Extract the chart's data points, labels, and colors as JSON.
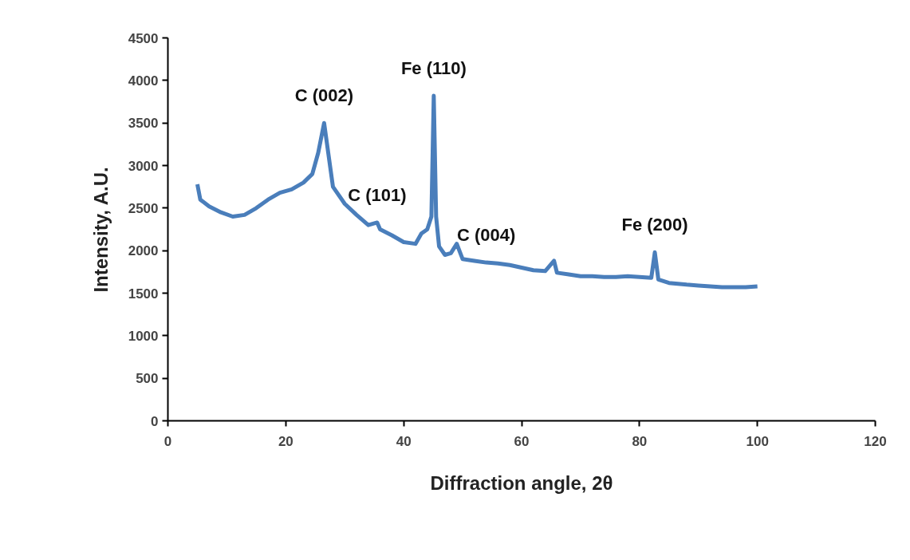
{
  "chart_data": {
    "type": "line",
    "xlabel": "Diffraction angle, 2θ",
    "ylabel": "Intensity, A.U.",
    "xlim": [
      0,
      120
    ],
    "xticks": [
      0,
      20,
      40,
      60,
      80,
      100,
      120
    ],
    "ylim": [
      0,
      4500
    ],
    "yticks": [
      0,
      500,
      1000,
      1500,
      2000,
      2500,
      3000,
      3500,
      4000,
      4500
    ],
    "grid": false,
    "marker": "none",
    "line_style": "solid",
    "series": [
      {
        "color": "#4a7ebb",
        "x": [
          5,
          5.5,
          7,
          9,
          11,
          13,
          15,
          17,
          19,
          21,
          23,
          24.5,
          25.5,
          26.5,
          27.3,
          28,
          30,
          32,
          34,
          35.5,
          36,
          38,
          40,
          42,
          43,
          44,
          44.7,
          45.1,
          45.5,
          46,
          47,
          48,
          49,
          50,
          52,
          54,
          56,
          58,
          60,
          62,
          64,
          65.5,
          66,
          68,
          70,
          72,
          74,
          76,
          78,
          80,
          82,
          82.6,
          83.2,
          85,
          88,
          90,
          92,
          94,
          96,
          98,
          100
        ],
        "values": [
          2780,
          2600,
          2520,
          2450,
          2400,
          2420,
          2500,
          2600,
          2680,
          2720,
          2800,
          2900,
          3150,
          3500,
          3100,
          2750,
          2550,
          2420,
          2300,
          2330,
          2250,
          2180,
          2100,
          2080,
          2200,
          2250,
          2400,
          3820,
          2400,
          2050,
          1950,
          1970,
          2080,
          1900,
          1880,
          1860,
          1850,
          1830,
          1800,
          1770,
          1760,
          1880,
          1740,
          1720,
          1700,
          1700,
          1690,
          1690,
          1700,
          1690,
          1680,
          1980,
          1660,
          1620,
          1600,
          1590,
          1580,
          1570,
          1570,
          1570,
          1580
        ]
      }
    ],
    "annotations": [
      {
        "text": "C (002)",
        "x": 26.5,
        "y": 3500
      },
      {
        "text": "Fe (110)",
        "x": 45.1,
        "y": 3820
      },
      {
        "text": "C (101)",
        "x": 35.5,
        "y": 2330
      },
      {
        "text": "C (004)",
        "x": 54,
        "y": 1860
      },
      {
        "text": "Fe (200)",
        "x": 82.6,
        "y": 1980
      }
    ]
  }
}
